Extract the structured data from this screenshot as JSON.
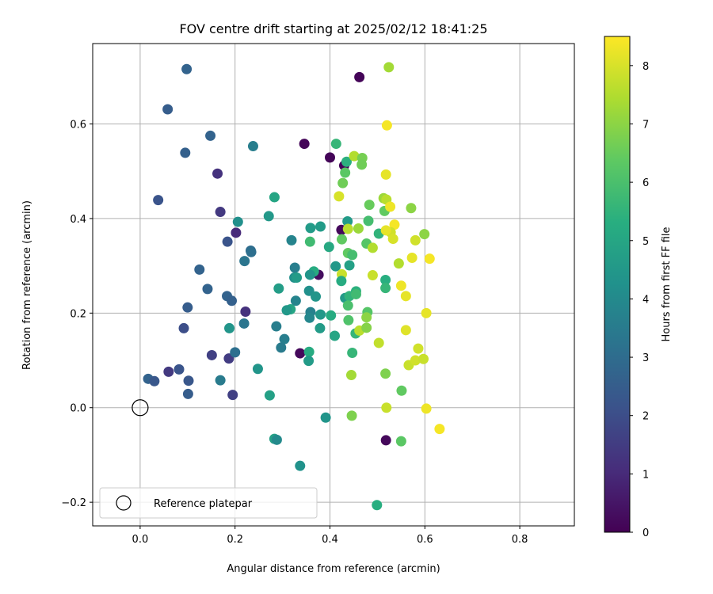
{
  "chart_data": {
    "type": "scatter",
    "title": "FOV centre drift starting at 2025/02/12 18:41:25",
    "xlabel": "Angular distance from reference (arcmin)",
    "ylabel": "Rotation from reference (arcmin)",
    "xlim": [
      -0.1,
      0.915
    ],
    "ylim": [
      -0.25,
      0.77
    ],
    "xticks": [
      0.0,
      0.2,
      0.4,
      0.6,
      0.8
    ],
    "xtick_labels": [
      "0.0",
      "0.2",
      "0.4",
      "0.6",
      "0.8"
    ],
    "yticks": [
      -0.2,
      0.0,
      0.2,
      0.4,
      0.6
    ],
    "ytick_labels": [
      "−0.2",
      "0.0",
      "0.2",
      "0.4",
      "0.6"
    ],
    "grid": true,
    "legend": {
      "placement": "lower-left",
      "entries": [
        "Reference platepar"
      ]
    },
    "reference_point": {
      "x": 0.0,
      "y": 0.0,
      "label": "Reference platepar"
    },
    "colorbar": {
      "label": "Hours from first FF file",
      "range": [
        0,
        8.5
      ],
      "ticks": [
        0,
        1,
        2,
        3,
        4,
        5,
        6,
        7,
        8
      ],
      "tick_labels": [
        "0",
        "1",
        "2",
        "3",
        "4",
        "5",
        "6",
        "7",
        "8"
      ],
      "colormap": "viridis"
    },
    "points": [
      {
        "x": 0.462,
        "y": 0.699,
        "c": 0.1
      },
      {
        "x": 0.346,
        "y": 0.558,
        "c": 0.1
      },
      {
        "x": 0.4,
        "y": 0.529,
        "c": 0.1
      },
      {
        "x": 0.43,
        "y": 0.512,
        "c": 0.1
      },
      {
        "x": 0.424,
        "y": 0.376,
        "c": 0.2
      },
      {
        "x": 0.376,
        "y": 0.281,
        "c": 0.3
      },
      {
        "x": 0.337,
        "y": 0.115,
        "c": 0.2
      },
      {
        "x": 0.518,
        "y": -0.069,
        "c": 0.2
      },
      {
        "x": 0.098,
        "y": 0.716,
        "c": 2.7
      },
      {
        "x": 0.058,
        "y": 0.631,
        "c": 2.5
      },
      {
        "x": 0.148,
        "y": 0.575,
        "c": 2.7
      },
      {
        "x": 0.095,
        "y": 0.539,
        "c": 2.6
      },
      {
        "x": 0.163,
        "y": 0.495,
        "c": 1.2
      },
      {
        "x": 0.038,
        "y": 0.439,
        "c": 2.2
      },
      {
        "x": 0.169,
        "y": 0.414,
        "c": 1.4
      },
      {
        "x": 0.202,
        "y": 0.37,
        "c": 1.0
      },
      {
        "x": 0.184,
        "y": 0.351,
        "c": 2.2
      },
      {
        "x": 0.125,
        "y": 0.292,
        "c": 2.7
      },
      {
        "x": 0.142,
        "y": 0.251,
        "c": 2.7
      },
      {
        "x": 0.183,
        "y": 0.236,
        "c": 2.7
      },
      {
        "x": 0.193,
        "y": 0.226,
        "c": 2.6
      },
      {
        "x": 0.1,
        "y": 0.212,
        "c": 2.5
      },
      {
        "x": 0.222,
        "y": 0.203,
        "c": 1.2
      },
      {
        "x": 0.092,
        "y": 0.168,
        "c": 2.0
      },
      {
        "x": 0.151,
        "y": 0.111,
        "c": 1.6
      },
      {
        "x": 0.187,
        "y": 0.104,
        "c": 1.5
      },
      {
        "x": 0.082,
        "y": 0.081,
        "c": 2.2
      },
      {
        "x": 0.06,
        "y": 0.076,
        "c": 1.4
      },
      {
        "x": 0.017,
        "y": 0.061,
        "c": 2.7
      },
      {
        "x": 0.03,
        "y": 0.056,
        "c": 2.3
      },
      {
        "x": 0.102,
        "y": 0.057,
        "c": 2.3
      },
      {
        "x": 0.101,
        "y": 0.029,
        "c": 2.5
      },
      {
        "x": 0.195,
        "y": 0.027,
        "c": 1.6
      },
      {
        "x": 0.238,
        "y": 0.553,
        "c": 3.6
      },
      {
        "x": 0.206,
        "y": 0.393,
        "c": 4.2
      },
      {
        "x": 0.233,
        "y": 0.332,
        "c": 3.0
      },
      {
        "x": 0.234,
        "y": 0.329,
        "c": 3.1
      },
      {
        "x": 0.22,
        "y": 0.31,
        "c": 3.3
      },
      {
        "x": 0.219,
        "y": 0.178,
        "c": 3.3
      },
      {
        "x": 0.188,
        "y": 0.168,
        "c": 4.4
      },
      {
        "x": 0.2,
        "y": 0.117,
        "c": 3.1
      },
      {
        "x": 0.169,
        "y": 0.058,
        "c": 3.5
      },
      {
        "x": 0.283,
        "y": 0.445,
        "c": 5.0
      },
      {
        "x": 0.271,
        "y": 0.405,
        "c": 4.5
      },
      {
        "x": 0.319,
        "y": 0.354,
        "c": 3.8
      },
      {
        "x": 0.326,
        "y": 0.296,
        "c": 3.6
      },
      {
        "x": 0.325,
        "y": 0.275,
        "c": 4.2
      },
      {
        "x": 0.33,
        "y": 0.275,
        "c": 4.6
      },
      {
        "x": 0.292,
        "y": 0.252,
        "c": 4.7
      },
      {
        "x": 0.328,
        "y": 0.226,
        "c": 3.8
      },
      {
        "x": 0.317,
        "y": 0.208,
        "c": 5.0
      },
      {
        "x": 0.309,
        "y": 0.206,
        "c": 4.5
      },
      {
        "x": 0.287,
        "y": 0.172,
        "c": 3.6
      },
      {
        "x": 0.304,
        "y": 0.145,
        "c": 3.6
      },
      {
        "x": 0.297,
        "y": 0.127,
        "c": 3.5
      },
      {
        "x": 0.248,
        "y": 0.082,
        "c": 4.4
      },
      {
        "x": 0.273,
        "y": 0.026,
        "c": 4.8
      },
      {
        "x": 0.283,
        "y": -0.066,
        "c": 4.8
      },
      {
        "x": 0.288,
        "y": -0.068,
        "c": 4.0
      },
      {
        "x": 0.337,
        "y": -0.123,
        "c": 4.3
      },
      {
        "x": 0.359,
        "y": 0.38,
        "c": 4.6
      },
      {
        "x": 0.38,
        "y": 0.383,
        "c": 4.6
      },
      {
        "x": 0.358,
        "y": 0.351,
        "c": 5.8
      },
      {
        "x": 0.366,
        "y": 0.288,
        "c": 5.2
      },
      {
        "x": 0.358,
        "y": 0.281,
        "c": 4.4
      },
      {
        "x": 0.356,
        "y": 0.247,
        "c": 4.2
      },
      {
        "x": 0.37,
        "y": 0.235,
        "c": 4.4
      },
      {
        "x": 0.359,
        "y": 0.202,
        "c": 3.7
      },
      {
        "x": 0.357,
        "y": 0.19,
        "c": 3.9
      },
      {
        "x": 0.38,
        "y": 0.197,
        "c": 4.5
      },
      {
        "x": 0.379,
        "y": 0.168,
        "c": 4.6
      },
      {
        "x": 0.356,
        "y": 0.118,
        "c": 5.2
      },
      {
        "x": 0.355,
        "y": 0.099,
        "c": 4.6
      },
      {
        "x": 0.391,
        "y": -0.021,
        "c": 4.4
      },
      {
        "x": 0.413,
        "y": 0.558,
        "c": 5.6
      },
      {
        "x": 0.435,
        "y": 0.52,
        "c": 5.4
      },
      {
        "x": 0.432,
        "y": 0.497,
        "c": 6.3
      },
      {
        "x": 0.427,
        "y": 0.475,
        "c": 6.6
      },
      {
        "x": 0.419,
        "y": 0.447,
        "c": 8.0
      },
      {
        "x": 0.437,
        "y": 0.394,
        "c": 4.6
      },
      {
        "x": 0.425,
        "y": 0.356,
        "c": 6.4
      },
      {
        "x": 0.398,
        "y": 0.34,
        "c": 5.1
      },
      {
        "x": 0.438,
        "y": 0.327,
        "c": 6.4
      },
      {
        "x": 0.447,
        "y": 0.323,
        "c": 5.9
      },
      {
        "x": 0.441,
        "y": 0.301,
        "c": 4.8
      },
      {
        "x": 0.412,
        "y": 0.299,
        "c": 4.5
      },
      {
        "x": 0.425,
        "y": 0.282,
        "c": 7.8
      },
      {
        "x": 0.424,
        "y": 0.268,
        "c": 5.2
      },
      {
        "x": 0.432,
        "y": 0.232,
        "c": 4.6
      },
      {
        "x": 0.441,
        "y": 0.236,
        "c": 5.5
      },
      {
        "x": 0.455,
        "y": 0.246,
        "c": 5.4
      },
      {
        "x": 0.455,
        "y": 0.24,
        "c": 5.8
      },
      {
        "x": 0.438,
        "y": 0.216,
        "c": 6.0
      },
      {
        "x": 0.402,
        "y": 0.195,
        "c": 5.2
      },
      {
        "x": 0.439,
        "y": 0.185,
        "c": 6.1
      },
      {
        "x": 0.454,
        "y": 0.157,
        "c": 5.6
      },
      {
        "x": 0.41,
        "y": 0.152,
        "c": 5.0
      },
      {
        "x": 0.447,
        "y": 0.116,
        "c": 5.6
      },
      {
        "x": 0.445,
        "y": 0.069,
        "c": 7.3
      },
      {
        "x": 0.446,
        "y": -0.017,
        "c": 6.8
      },
      {
        "x": 0.499,
        "y": -0.206,
        "c": 5.3
      },
      {
        "x": 0.451,
        "y": 0.532,
        "c": 7.5
      },
      {
        "x": 0.468,
        "y": 0.528,
        "c": 6.7
      },
      {
        "x": 0.467,
        "y": 0.514,
        "c": 6.6
      },
      {
        "x": 0.46,
        "y": 0.379,
        "c": 7.2
      },
      {
        "x": 0.438,
        "y": 0.378,
        "c": 7.6
      },
      {
        "x": 0.483,
        "y": 0.429,
        "c": 6.5
      },
      {
        "x": 0.481,
        "y": 0.395,
        "c": 5.9
      },
      {
        "x": 0.503,
        "y": 0.368,
        "c": 5.5
      },
      {
        "x": 0.477,
        "y": 0.347,
        "c": 6.2
      },
      {
        "x": 0.49,
        "y": 0.338,
        "c": 7.5
      },
      {
        "x": 0.49,
        "y": 0.28,
        "c": 7.8
      },
      {
        "x": 0.479,
        "y": 0.202,
        "c": 6.2
      },
      {
        "x": 0.477,
        "y": 0.191,
        "c": 7.0
      },
      {
        "x": 0.462,
        "y": 0.163,
        "c": 7.6
      },
      {
        "x": 0.477,
        "y": 0.169,
        "c": 6.9
      },
      {
        "x": 0.503,
        "y": 0.137,
        "c": 7.7
      },
      {
        "x": 0.513,
        "y": 0.443,
        "c": 7.2
      },
      {
        "x": 0.519,
        "y": 0.44,
        "c": 7.6
      },
      {
        "x": 0.515,
        "y": 0.416,
        "c": 6.4
      },
      {
        "x": 0.527,
        "y": 0.425,
        "c": 8.3
      },
      {
        "x": 0.536,
        "y": 0.387,
        "c": 8.4
      },
      {
        "x": 0.528,
        "y": 0.371,
        "c": 7.9
      },
      {
        "x": 0.518,
        "y": 0.375,
        "c": 8.2
      },
      {
        "x": 0.533,
        "y": 0.357,
        "c": 8.0
      },
      {
        "x": 0.545,
        "y": 0.305,
        "c": 7.5
      },
      {
        "x": 0.517,
        "y": 0.27,
        "c": 5.3
      },
      {
        "x": 0.517,
        "y": 0.253,
        "c": 5.6
      },
      {
        "x": 0.55,
        "y": 0.258,
        "c": 8.3
      },
      {
        "x": 0.56,
        "y": 0.236,
        "c": 8.2
      },
      {
        "x": 0.56,
        "y": 0.164,
        "c": 8.1
      },
      {
        "x": 0.566,
        "y": 0.09,
        "c": 7.8
      },
      {
        "x": 0.517,
        "y": 0.072,
        "c": 6.8
      },
      {
        "x": 0.519,
        "y": 0.0,
        "c": 7.8
      },
      {
        "x": 0.551,
        "y": 0.036,
        "c": 6.4
      },
      {
        "x": 0.55,
        "y": -0.071,
        "c": 6.3
      },
      {
        "x": 0.524,
        "y": 0.72,
        "c": 7.3
      },
      {
        "x": 0.52,
        "y": 0.597,
        "c": 8.4
      },
      {
        "x": 0.518,
        "y": 0.493,
        "c": 8.2
      },
      {
        "x": 0.571,
        "y": 0.422,
        "c": 7.0
      },
      {
        "x": 0.599,
        "y": 0.367,
        "c": 7.0
      },
      {
        "x": 0.58,
        "y": 0.354,
        "c": 7.9
      },
      {
        "x": 0.573,
        "y": 0.317,
        "c": 8.2
      },
      {
        "x": 0.61,
        "y": 0.315,
        "c": 8.4
      },
      {
        "x": 0.603,
        "y": 0.2,
        "c": 8.2
      },
      {
        "x": 0.586,
        "y": 0.125,
        "c": 7.9
      },
      {
        "x": 0.58,
        "y": 0.1,
        "c": 7.9
      },
      {
        "x": 0.597,
        "y": 0.103,
        "c": 7.8
      },
      {
        "x": 0.603,
        "y": -0.002,
        "c": 8.3
      },
      {
        "x": 0.631,
        "y": -0.045,
        "c": 8.4
      }
    ]
  }
}
